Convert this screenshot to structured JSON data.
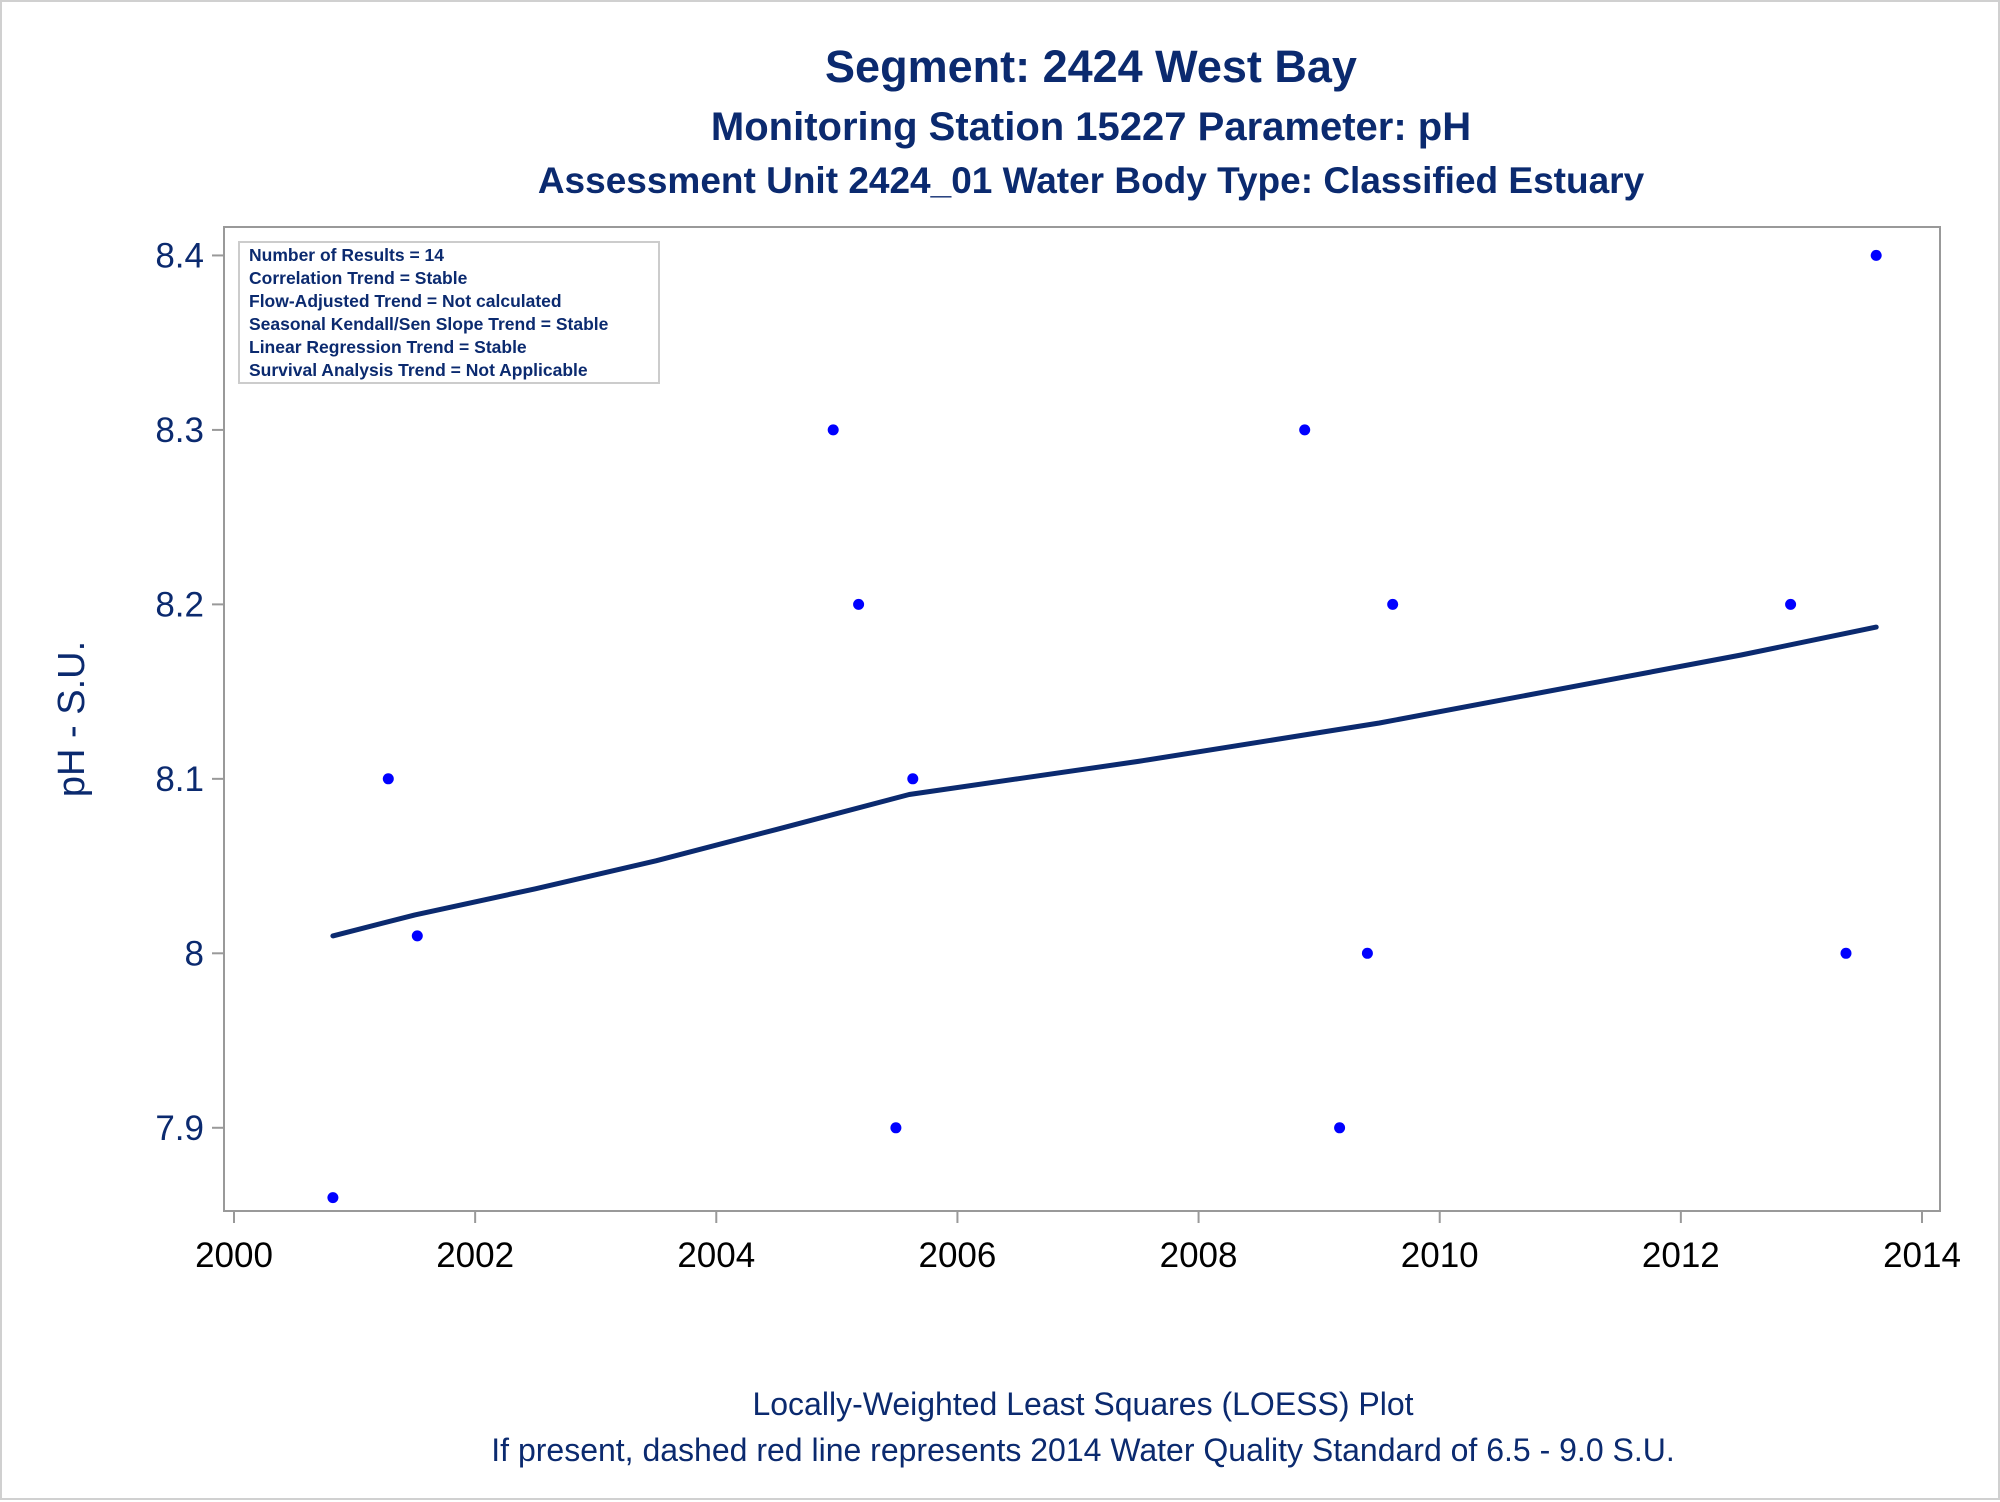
{
  "titles": {
    "line1": "Segment: 2424  West Bay",
    "line2": "Monitoring Station 15227 Parameter: pH",
    "line3": "Assessment Unit 2424_01   Water Body Type: Classified Estuary"
  },
  "stats_box": [
    "Number of Results = 14",
    "Correlation Trend = Stable",
    "Flow-Adjusted Trend = Not calculated",
    "Seasonal Kendall/Sen Slope Trend = Stable",
    "Linear Regression Trend = Stable",
    "Survival Analysis Trend = Not Applicable"
  ],
  "footnotes": {
    "line1": "Locally-Weighted Least Squares (LOESS) Plot",
    "line2": "If present, dashed red line represents 2014 Water Quality Standard of 6.5 - 9.0 S.U."
  },
  "colors": {
    "points": "#0000ff",
    "loess_line": "#0b2a6f",
    "text": "#0b2a6f",
    "axes": "#999999"
  },
  "chart_data": {
    "type": "scatter",
    "title": "Segment: 2424  West Bay",
    "xlabel": "",
    "ylabel": "pH - S.U.",
    "xlim": [
      2000,
      2014
    ],
    "ylim": [
      7.85,
      8.41
    ],
    "xticks": [
      "2000",
      "2002",
      "2004",
      "2006",
      "2008",
      "2010",
      "2012",
      "2014"
    ],
    "yticks": [
      "7.9",
      "8",
      "8.1",
      "8.2",
      "8.3",
      "8.4"
    ],
    "grid": false,
    "series": [
      {
        "type": "scatter",
        "x": [
          2000.82,
          2001.28,
          2001.52,
          2004.97,
          2005.18,
          2005.49,
          2005.63,
          2008.88,
          2009.17,
          2009.4,
          2009.61,
          2012.91,
          2013.37,
          2013.62
        ],
        "y": [
          7.86,
          8.1,
          8.01,
          8.3,
          8.2,
          7.9,
          8.1,
          8.3,
          7.9,
          8.0,
          8.2,
          8.2,
          8.0,
          8.4
        ]
      },
      {
        "type": "line",
        "x": [
          2000.82,
          2001.5,
          2002.5,
          2003.5,
          2004.5,
          2005.6,
          2006.5,
          2007.5,
          2008.5,
          2009.5,
          2010.5,
          2011.5,
          2012.5,
          2013.62
        ],
        "y": [
          8.01,
          8.022,
          8.037,
          8.053,
          8.071,
          8.091,
          8.1,
          8.11,
          8.121,
          8.132,
          8.145,
          8.158,
          8.171,
          8.187
        ]
      }
    ]
  }
}
